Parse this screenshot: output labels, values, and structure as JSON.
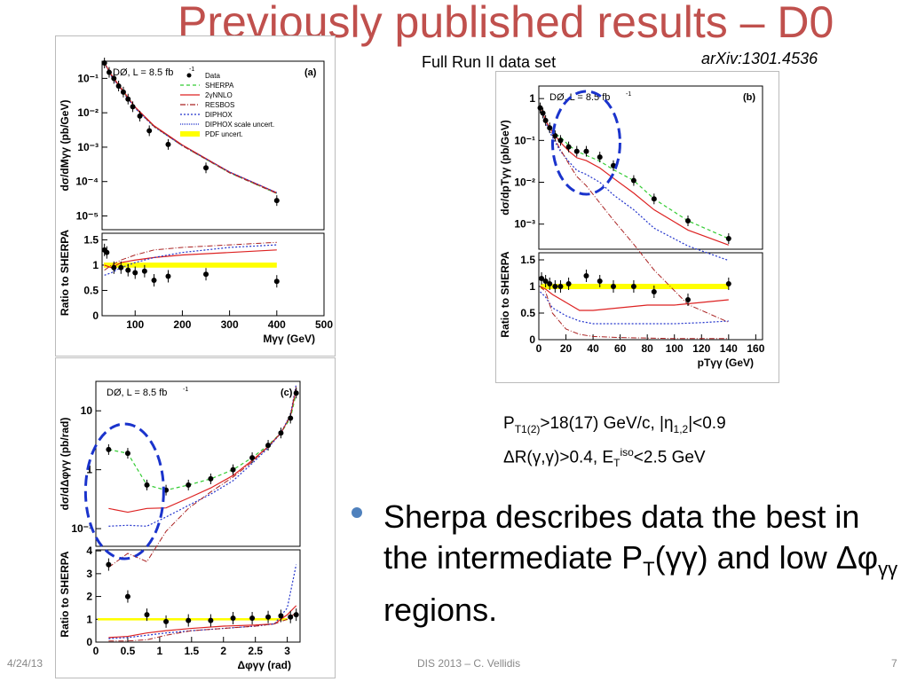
{
  "slide": {
    "title": "Previously published results – D0",
    "subtitle": "Full Run II data set",
    "reference": "arXiv:1301.4536",
    "footer_date": "4/24/13",
    "footer_center": "DIS 2013 – C. Vellidis",
    "page_number": "7"
  },
  "cuts": {
    "line1_a": "P",
    "line1_sub": "T1(2)",
    "line1_b": ">18(17) GeV/c,  |η",
    "line1_sub2": "1,2",
    "line1_c": "|<0.9",
    "line2_a": "ΔR(γ,γ)>0.4, E",
    "line2_sub": "T",
    "line2_sup": "iso",
    "line2_b": "<2.5 GeV"
  },
  "bullet": {
    "part1": "Sherpa describes data the best in the intermediate P",
    "sub": "T",
    "part2": "(γγ) and low Δφ",
    "sub2": "γγ",
    "part3": " regions."
  },
  "colors": {
    "title": "#c0504d",
    "bullet": "#4f81bd",
    "sherpa": "#33cc33",
    "nnlo": "#dd2222",
    "resbos": "#aa2222",
    "diphox": "#2233cc",
    "pdf_band": "#ffff00",
    "ellipse": "#1a33cc"
  },
  "chart_data": [
    {
      "type": "line",
      "panel": "(a)",
      "label_experiment": "DØ, L = 8.5 fb",
      "label_exp_sup": "-1",
      "ylabel": "dσ/dMγγ (pb/GeV)",
      "xlabel": "Mγγ (GeV)",
      "ratio_ylabel": "Ratio to SHERPA",
      "x_ticks": [
        "100",
        "200",
        "300",
        "400",
        "500"
      ],
      "y_ticks": [
        "10⁻¹",
        "10⁻²",
        "10⁻³",
        "10⁻⁴",
        "10⁻⁵"
      ],
      "ratio_ticks": [
        "1.5",
        "1",
        "0.5",
        "0"
      ],
      "legend": [
        "Data",
        "SHERPA",
        "2γNNLO",
        "RESBOS",
        "DIPHOX",
        "DIPHOX scale uncert.",
        "PDF uncert."
      ],
      "log_y": true,
      "xlim": [
        30,
        500
      ],
      "ylim_exp": [
        -5.4,
        -0.5
      ],
      "data_x": [
        35,
        45,
        55,
        65,
        75,
        85,
        95,
        110,
        130,
        170,
        250,
        400
      ],
      "data_y": [
        0.28,
        0.15,
        0.1,
        0.06,
        0.04,
        0.025,
        0.015,
        0.008,
        0.003,
        0.0012,
        0.00025,
        2.8e-05
      ],
      "sherpa_x": [
        35,
        50,
        70,
        100,
        140,
        200,
        300,
        400
      ],
      "sherpa_y": [
        0.28,
        0.12,
        0.05,
        0.014,
        0.004,
        0.0011,
        0.00018,
        4.5e-05
      ],
      "ratio_data": [
        1.3,
        1.25,
        0.95,
        0.95,
        0.9,
        0.85,
        0.88,
        0.7,
        0.78,
        0.82,
        0.68
      ],
      "ratio_x": [
        35,
        40,
        55,
        70,
        85,
        100,
        120,
        140,
        170,
        250,
        400
      ],
      "ratio_ylim": [
        0,
        1.7
      ]
    },
    {
      "type": "line",
      "panel": "(b)",
      "label_experiment": "DØ, L = 8.5 fb",
      "label_exp_sup": "-1",
      "ylabel": "dσ/dpTγγ (pb/GeV)",
      "xlabel": "pTγγ (GeV)",
      "ratio_ylabel": "Ratio to SHERPA",
      "x_ticks": [
        "0",
        "20",
        "40",
        "60",
        "80",
        "100",
        "120",
        "140",
        "160"
      ],
      "y_ticks": [
        "1",
        "10⁻¹",
        "10⁻²",
        "10⁻³"
      ],
      "ratio_ticks": [
        "1.5",
        "1",
        "0.5",
        "0"
      ],
      "log_y": true,
      "xlim": [
        0,
        165
      ],
      "ylim_exp": [
        -3.6,
        0.3
      ],
      "data_x": [
        1,
        3,
        5,
        8,
        12,
        16,
        22,
        28,
        35,
        45,
        55,
        70,
        85,
        110,
        140
      ],
      "data_y": [
        0.6,
        0.45,
        0.3,
        0.2,
        0.13,
        0.1,
        0.07,
        0.055,
        0.055,
        0.04,
        0.025,
        0.011,
        0.004,
        0.0012,
        0.00045
      ],
      "ratio_x": [
        2,
        5,
        8,
        12,
        16,
        22,
        35,
        45,
        55,
        70,
        85,
        110,
        140
      ],
      "ratio_data": [
        1.15,
        1.1,
        1.05,
        1.0,
        1.0,
        1.05,
        1.2,
        1.1,
        1.0,
        1.0,
        0.9,
        0.75,
        1.05
      ],
      "ratio_ylim": [
        0,
        1.7
      ]
    },
    {
      "type": "line",
      "panel": "(c)",
      "label_experiment": "DØ, L = 8.5 fb",
      "label_exp_sup": "-1",
      "ylabel": "dσ/dΔφγγ (pb/rad)",
      "xlabel": "Δφγγ (rad)",
      "ratio_ylabel": "Ratio to SHERPA",
      "x_ticks": [
        "0",
        "0.5",
        "1",
        "1.5",
        "2",
        "2.5",
        "3"
      ],
      "y_ticks": [
        "10",
        "1",
        "10⁻¹"
      ],
      "ratio_ticks": [
        "4",
        "3",
        "2",
        "1",
        "0"
      ],
      "log_y": true,
      "xlim": [
        0,
        3.2
      ],
      "ylim_exp": [
        -1.3,
        1.5
      ],
      "data_x": [
        0.2,
        0.5,
        0.8,
        1.1,
        1.45,
        1.8,
        2.15,
        2.45,
        2.7,
        2.9,
        3.05,
        3.14
      ],
      "data_y": [
        2.2,
        1.9,
        0.55,
        0.45,
        0.55,
        0.7,
        1.0,
        1.6,
        2.6,
        4.2,
        7.5,
        20
      ],
      "ratio_x": [
        0.2,
        0.5,
        0.8,
        1.1,
        1.45,
        1.8,
        2.15,
        2.45,
        2.7,
        2.9,
        3.05,
        3.14
      ],
      "ratio_data": [
        3.4,
        2.0,
        1.2,
        0.9,
        0.95,
        0.95,
        1.05,
        1.05,
        1.1,
        1.15,
        1.1,
        1.2
      ],
      "ratio_ylim": [
        0,
        4.2
      ]
    }
  ]
}
